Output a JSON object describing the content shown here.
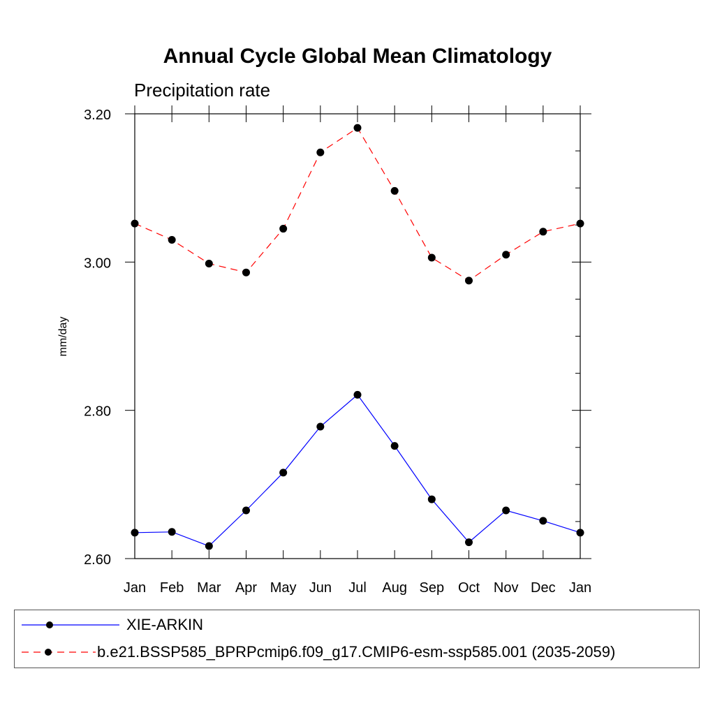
{
  "chart_data": {
    "type": "line",
    "title": "Annual Cycle Global Mean Climatology",
    "subtitle": "Precipitation rate",
    "xlabel": "",
    "ylabel": "mm/day",
    "categories": [
      "Jan",
      "Feb",
      "Mar",
      "Apr",
      "May",
      "Jun",
      "Jul",
      "Aug",
      "Sep",
      "Oct",
      "Nov",
      "Dec",
      "Jan"
    ],
    "ylim": [
      2.6,
      3.2
    ],
    "yticks": [
      "2.60",
      "2.80",
      "3.00",
      "3.20"
    ],
    "series": [
      {
        "name": "XIE-ARKIN",
        "color": "#0000ff",
        "dash": "solid",
        "values": [
          2.635,
          2.636,
          2.617,
          2.665,
          2.716,
          2.778,
          2.821,
          2.752,
          2.68,
          2.622,
          2.665,
          2.651,
          2.635
        ]
      },
      {
        "name": "b.e21.BSSP585_BPRPcmip6.f09_g17.CMIP6-esm-ssp585.001 (2035-2059)",
        "color": "#ff0000",
        "dash": "dashed",
        "values": [
          3.052,
          3.03,
          2.998,
          2.986,
          3.045,
          3.148,
          3.181,
          3.096,
          3.006,
          2.975,
          3.01,
          3.041,
          3.052
        ]
      }
    ],
    "grid": false,
    "legend_position": "bottom"
  }
}
